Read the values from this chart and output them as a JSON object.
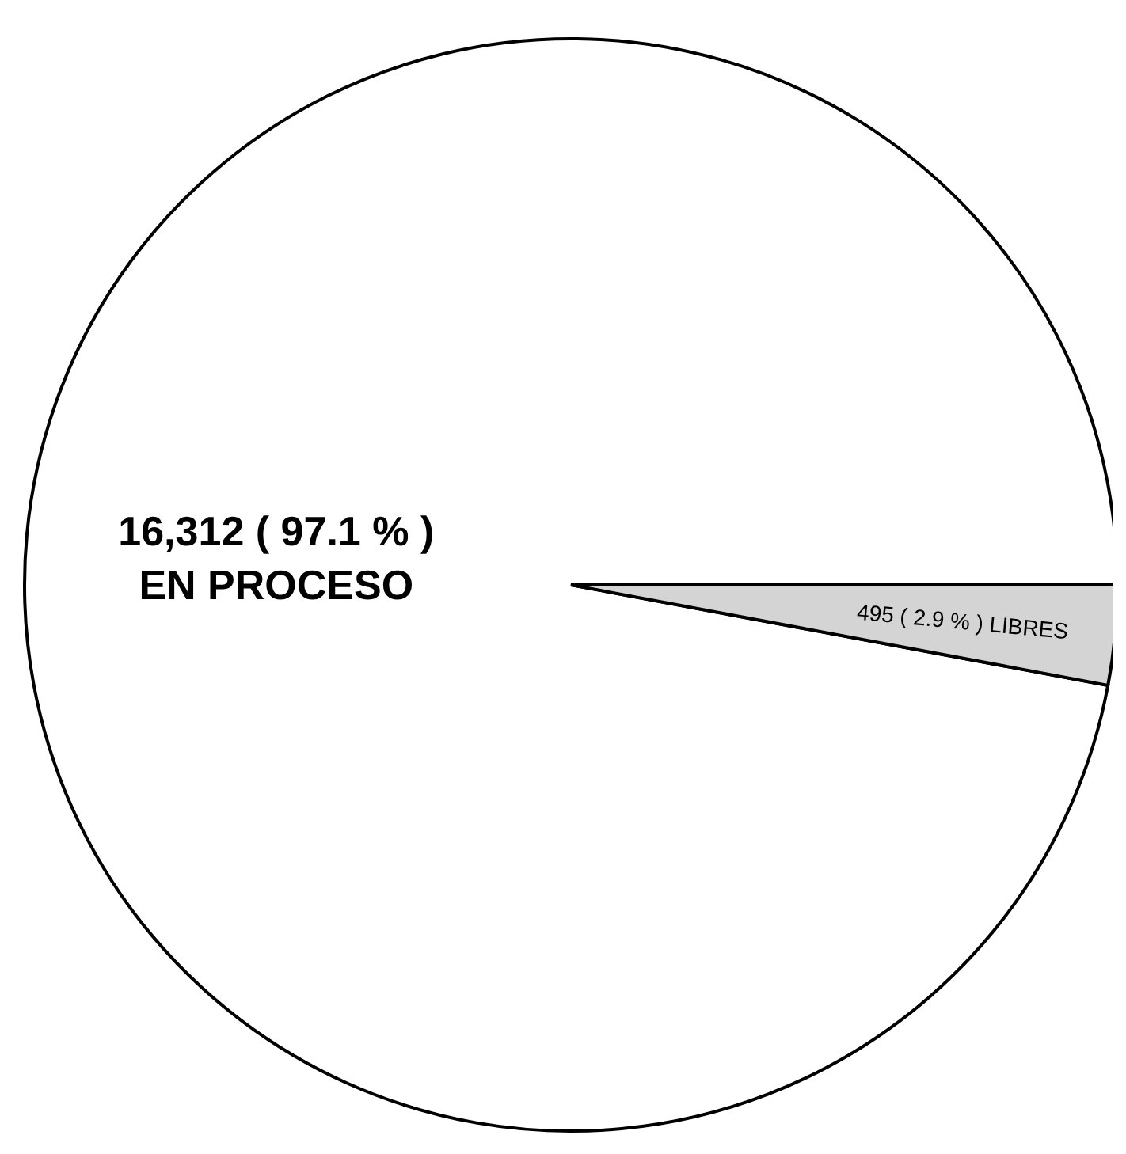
{
  "chart_data": {
    "type": "pie",
    "categories": [
      "EN PROCESO",
      "LIBRES"
    ],
    "values": [
      16312,
      495
    ],
    "value_labels": [
      "16,312 ( 97.1 % )",
      "495 ( 2.9 % )"
    ],
    "colors": [
      "#ffffff",
      "#d4d4d4"
    ]
  }
}
